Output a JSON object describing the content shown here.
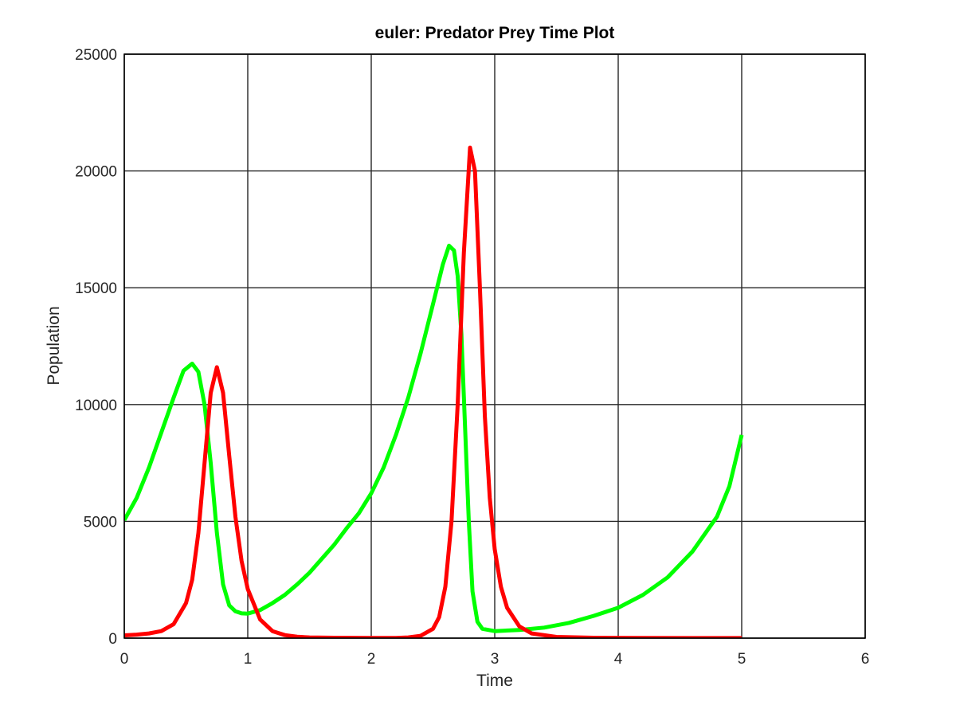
{
  "chart_data": {
    "type": "line",
    "title": "euler: Predator Prey Time Plot",
    "xlabel": "Time",
    "ylabel": "Population",
    "xlim": [
      0,
      6
    ],
    "ylim": [
      0,
      25000
    ],
    "x_ticks": [
      "0",
      "1",
      "2",
      "3",
      "4",
      "5",
      "6"
    ],
    "y_ticks": [
      "0",
      "5000",
      "10000",
      "15000",
      "20000",
      "25000"
    ],
    "grid": true,
    "legend": "none",
    "series": [
      {
        "color": "#00ff00",
        "points": [
          [
            0,
            5050
          ],
          [
            0.1,
            6000
          ],
          [
            0.2,
            7300
          ],
          [
            0.3,
            8800
          ],
          [
            0.4,
            10300
          ],
          [
            0.48,
            11450
          ],
          [
            0.55,
            11750
          ],
          [
            0.6,
            11400
          ],
          [
            0.65,
            10000
          ],
          [
            0.7,
            7500
          ],
          [
            0.75,
            4500
          ],
          [
            0.8,
            2300
          ],
          [
            0.85,
            1400
          ],
          [
            0.9,
            1150
          ],
          [
            0.95,
            1060
          ],
          [
            1.0,
            1050
          ],
          [
            1.1,
            1200
          ],
          [
            1.2,
            1500
          ],
          [
            1.3,
            1850
          ],
          [
            1.4,
            2300
          ],
          [
            1.5,
            2800
          ],
          [
            1.6,
            3400
          ],
          [
            1.7,
            4000
          ],
          [
            1.8,
            4700
          ],
          [
            1.9,
            5350
          ],
          [
            2.0,
            6200
          ],
          [
            2.1,
            7300
          ],
          [
            2.2,
            8700
          ],
          [
            2.3,
            10300
          ],
          [
            2.4,
            12200
          ],
          [
            2.5,
            14300
          ],
          [
            2.58,
            16000
          ],
          [
            2.63,
            16800
          ],
          [
            2.67,
            16600
          ],
          [
            2.7,
            15500
          ],
          [
            2.73,
            13000
          ],
          [
            2.76,
            9000
          ],
          [
            2.79,
            5000
          ],
          [
            2.82,
            2000
          ],
          [
            2.86,
            700
          ],
          [
            2.9,
            400
          ],
          [
            3.0,
            300
          ],
          [
            3.2,
            350
          ],
          [
            3.4,
            450
          ],
          [
            3.6,
            650
          ],
          [
            3.8,
            950
          ],
          [
            4.0,
            1300
          ],
          [
            4.2,
            1850
          ],
          [
            4.4,
            2600
          ],
          [
            4.6,
            3700
          ],
          [
            4.8,
            5200
          ],
          [
            4.9,
            6500
          ],
          [
            5.0,
            8700
          ]
        ]
      },
      {
        "color": "#ff0000",
        "points": [
          [
            0,
            120
          ],
          [
            0.1,
            150
          ],
          [
            0.2,
            200
          ],
          [
            0.3,
            300
          ],
          [
            0.4,
            600
          ],
          [
            0.5,
            1500
          ],
          [
            0.55,
            2500
          ],
          [
            0.6,
            4500
          ],
          [
            0.65,
            7500
          ],
          [
            0.7,
            10500
          ],
          [
            0.75,
            11600
          ],
          [
            0.8,
            10500
          ],
          [
            0.85,
            7800
          ],
          [
            0.9,
            5200
          ],
          [
            0.95,
            3300
          ],
          [
            1.0,
            2100
          ],
          [
            1.1,
            800
          ],
          [
            1.2,
            300
          ],
          [
            1.3,
            130
          ],
          [
            1.4,
            60
          ],
          [
            1.5,
            30
          ],
          [
            1.7,
            15
          ],
          [
            2.0,
            10
          ],
          [
            2.2,
            10
          ],
          [
            2.3,
            30
          ],
          [
            2.4,
            100
          ],
          [
            2.5,
            400
          ],
          [
            2.55,
            900
          ],
          [
            2.6,
            2200
          ],
          [
            2.65,
            5000
          ],
          [
            2.7,
            10000
          ],
          [
            2.75,
            16500
          ],
          [
            2.8,
            21000
          ],
          [
            2.84,
            20000
          ],
          [
            2.88,
            15000
          ],
          [
            2.92,
            9500
          ],
          [
            2.96,
            6000
          ],
          [
            3.0,
            3800
          ],
          [
            3.05,
            2200
          ],
          [
            3.1,
            1300
          ],
          [
            3.2,
            500
          ],
          [
            3.3,
            200
          ],
          [
            3.5,
            50
          ],
          [
            3.8,
            15
          ],
          [
            4.2,
            8
          ],
          [
            4.6,
            5
          ],
          [
            5.0,
            5
          ]
        ]
      }
    ]
  }
}
